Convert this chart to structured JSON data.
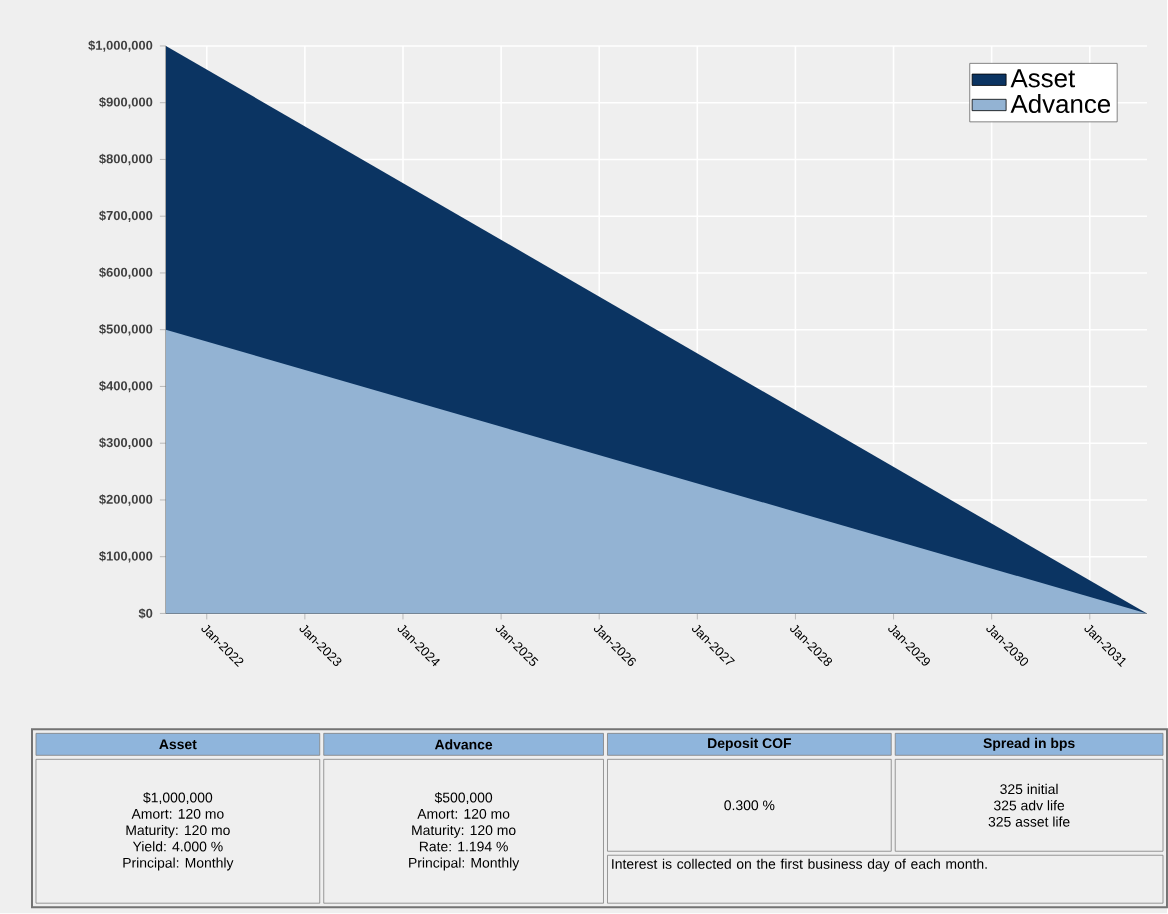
{
  "chart_data": {
    "type": "area",
    "x": [
      "2021-08",
      "2026-08",
      "2031-08"
    ],
    "series": [
      {
        "name": "Asset",
        "color": "#0b3462",
        "values": [
          1000000,
          500000,
          0
        ]
      },
      {
        "name": "Advance",
        "color": "#93b3d3",
        "values": [
          500000,
          250000,
          0
        ]
      }
    ],
    "xlim": [
      "2021-08",
      "2031-08"
    ],
    "xticks": [
      {
        "value": "2022-01",
        "label": "Jan-2022"
      },
      {
        "value": "2023-01",
        "label": "Jan-2023"
      },
      {
        "value": "2024-01",
        "label": "Jan-2024"
      },
      {
        "value": "2025-01",
        "label": "Jan-2025"
      },
      {
        "value": "2026-01",
        "label": "Jan-2026"
      },
      {
        "value": "2027-01",
        "label": "Jan-2027"
      },
      {
        "value": "2028-01",
        "label": "Jan-2028"
      },
      {
        "value": "2029-01",
        "label": "Jan-2029"
      },
      {
        "value": "2030-01",
        "label": "Jan-2030"
      },
      {
        "value": "2031-01",
        "label": "Jan-2031"
      }
    ],
    "ylim": [
      0,
      1000000
    ],
    "yticks": [
      {
        "value": 0,
        "label": "$0"
      },
      {
        "value": 100000,
        "label": "$100,000"
      },
      {
        "value": 200000,
        "label": "$200,000"
      },
      {
        "value": 300000,
        "label": "$300,000"
      },
      {
        "value": 400000,
        "label": "$400,000"
      },
      {
        "value": 500000,
        "label": "$500,000"
      },
      {
        "value": 600000,
        "label": "$600,000"
      },
      {
        "value": 700000,
        "label": "$700,000"
      },
      {
        "value": 800000,
        "label": "$800,000"
      },
      {
        "value": 900000,
        "label": "$900,000"
      },
      {
        "value": 1000000,
        "label": "$1,000,000"
      }
    ],
    "grid": true,
    "legend": "top right",
    "annotations": [
      "Asset",
      "Advance",
      "Deposit COF",
      "Spread in bps",
      "$1,000,000",
      "Amort: 120 mo",
      "Maturity: 120 mo",
      "Yield: 4.000 %",
      "Principal: Monthly",
      "$500,000",
      "Amort: 120 mo",
      "Maturity: 120 mo",
      "Rate: 1.194 %",
      "Principal: Monthly",
      "0.300 %",
      "325 initial",
      "325 adv life",
      "325 asset life",
      "Interest is collected on the first business day of each month."
    ]
  }
}
